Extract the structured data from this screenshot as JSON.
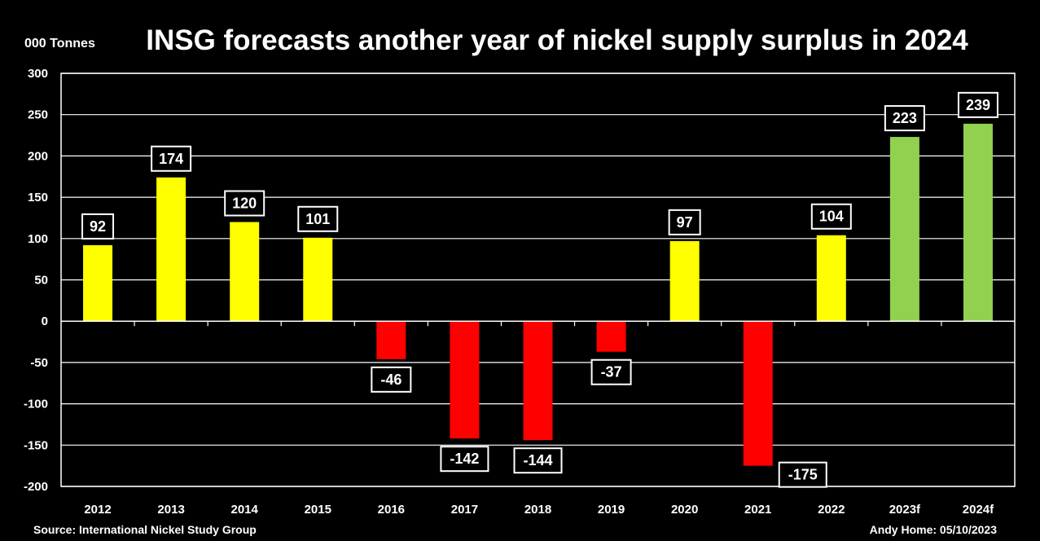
{
  "chart_data": {
    "type": "bar",
    "title": "INSG forecasts another year of nickel supply surplus in 2024",
    "ylabel": "000 Tonnes",
    "categories": [
      "2012",
      "2013",
      "2014",
      "2015",
      "2016",
      "2017",
      "2018",
      "2019",
      "2020",
      "2021",
      "2022",
      "2023f",
      "2024f"
    ],
    "values": [
      92,
      174,
      120,
      101,
      -46,
      -142,
      -144,
      -37,
      97,
      -175,
      104,
      223,
      239
    ],
    "ylim": [
      -200,
      300
    ],
    "yticks": [
      -200,
      -150,
      -100,
      -50,
      0,
      50,
      100,
      150,
      200,
      250,
      300
    ],
    "grid": true,
    "colors": {
      "surplus": "#ffff00",
      "deficit": "#ff0000",
      "forecast": "#92d050",
      "background": "#000000",
      "text": "#ffffff"
    },
    "source": "Source: International Nickel Study Group",
    "credit": "Andy Home: 05/10/2023"
  }
}
